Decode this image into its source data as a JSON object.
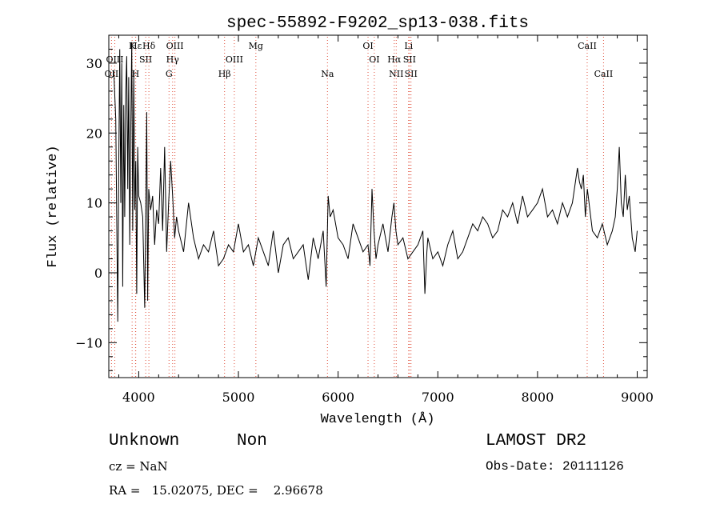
{
  "chart_data": {
    "type": "line",
    "title": "spec-55892-F9202_sp13-038.fits",
    "xlabel": "Wavelength (Å)",
    "ylabel": "Flux (relative)",
    "xlim": [
      3700,
      9100
    ],
    "ylim": [
      -15,
      34
    ],
    "xticks": [
      4000,
      5000,
      6000,
      7000,
      8000,
      9000
    ],
    "yticks": [
      -10,
      0,
      10,
      20,
      30
    ],
    "grid": false,
    "legend": "none",
    "line_color": "#000000",
    "marker_color": "#e0503c",
    "x": [
      3750,
      3770,
      3790,
      3800,
      3810,
      3820,
      3830,
      3840,
      3850,
      3860,
      3870,
      3880,
      3890,
      3900,
      3910,
      3920,
      3930,
      3940,
      3950,
      3960,
      3970,
      3980,
      3990,
      4000,
      4020,
      4040,
      4060,
      4070,
      4080,
      4090,
      4100,
      4120,
      4140,
      4160,
      4180,
      4200,
      4220,
      4240,
      4260,
      4280,
      4300,
      4320,
      4340,
      4360,
      4380,
      4400,
      4450,
      4500,
      4550,
      4600,
      4650,
      4700,
      4750,
      4800,
      4850,
      4900,
      4950,
      5000,
      5050,
      5100,
      5150,
      5200,
      5250,
      5300,
      5350,
      5400,
      5450,
      5500,
      5550,
      5600,
      5650,
      5700,
      5750,
      5800,
      5850,
      5880,
      5900,
      5920,
      5950,
      6000,
      6050,
      6100,
      6150,
      6200,
      6250,
      6300,
      6320,
      6340,
      6360,
      6380,
      6400,
      6450,
      6500,
      6540,
      6560,
      6580,
      6600,
      6650,
      6700,
      6750,
      6800,
      6850,
      6870,
      6890,
      6900,
      6950,
      7000,
      7050,
      7100,
      7150,
      7200,
      7250,
      7300,
      7350,
      7400,
      7450,
      7500,
      7550,
      7600,
      7650,
      7700,
      7750,
      7800,
      7850,
      7900,
      7950,
      8000,
      8050,
      8100,
      8150,
      8200,
      8250,
      8300,
      8350,
      8400,
      8420,
      8440,
      8460,
      8480,
      8500,
      8550,
      8600,
      8650,
      8700,
      8750,
      8780,
      8800,
      8820,
      8840,
      8860,
      8880,
      8900,
      8920,
      8950,
      8980,
      9000
    ],
    "values": [
      29,
      22,
      -7,
      16,
      32,
      10,
      30,
      -2,
      24,
      8,
      26,
      31,
      12,
      28,
      4,
      20,
      33,
      6,
      29,
      9,
      16,
      -3,
      18,
      11,
      10,
      8,
      -5,
      8,
      23,
      -4,
      12,
      9,
      11,
      4,
      9,
      7,
      15,
      6,
      18,
      3,
      10,
      16,
      11,
      5,
      8,
      6,
      3,
      10,
      5,
      2,
      4,
      3,
      6,
      1,
      2,
      4,
      3,
      7,
      3,
      4,
      1,
      5,
      3,
      1,
      6,
      0,
      4,
      5,
      2,
      3,
      4,
      -1,
      5,
      2,
      6,
      -2,
      11,
      8,
      9,
      5,
      4,
      2,
      7,
      5,
      3,
      4,
      1,
      12,
      6,
      2,
      4,
      7,
      3,
      8,
      10,
      6,
      4,
      5,
      2,
      3,
      4,
      6,
      -3,
      3,
      5,
      2,
      3,
      1,
      4,
      6,
      2,
      3,
      5,
      7,
      6,
      8,
      7,
      5,
      6,
      9,
      8,
      10,
      7,
      11,
      8,
      9,
      10,
      12,
      8,
      9,
      7,
      10,
      8,
      10,
      15,
      13,
      12,
      14,
      8,
      12,
      6,
      5,
      7,
      4,
      6,
      8,
      12,
      18,
      10,
      8,
      14,
      9,
      11,
      5,
      3,
      6
    ]
  },
  "lines": [
    {
      "label": "Hε",
      "x": 3970,
      "row": 0
    },
    {
      "label": "K",
      "x": 3934,
      "row": 0
    },
    {
      "label": "Hδ",
      "x": 4102,
      "row": 0
    },
    {
      "label": "OIII",
      "x": 4363,
      "row": 0
    },
    {
      "label": "Mg",
      "x": 5175,
      "row": 0
    },
    {
      "label": "OI",
      "x": 6300,
      "row": 0
    },
    {
      "label": "Li",
      "x": 6707,
      "row": 0
    },
    {
      "label": "CaII",
      "x": 8498,
      "row": 0
    },
    {
      "label": "OIII",
      "x": 3760,
      "row": 1
    },
    {
      "label": "SII",
      "x": 4070,
      "row": 1
    },
    {
      "label": "Hγ",
      "x": 4340,
      "row": 1
    },
    {
      "label": "OIII",
      "x": 4959,
      "row": 1
    },
    {
      "label": "OI",
      "x": 6363,
      "row": 1
    },
    {
      "label": "Hα",
      "x": 6563,
      "row": 1
    },
    {
      "label": "SII",
      "x": 6716,
      "row": 1
    },
    {
      "label": "OII",
      "x": 3727,
      "row": 2
    },
    {
      "label": "H",
      "x": 3968,
      "row": 2
    },
    {
      "label": "G",
      "x": 4304,
      "row": 2
    },
    {
      "label": "Hβ",
      "x": 4861,
      "row": 2
    },
    {
      "label": "Na",
      "x": 5893,
      "row": 2
    },
    {
      "label": "NII",
      "x": 6583,
      "row": 2
    },
    {
      "label": "SII",
      "x": 6731,
      "row": 2
    },
    {
      "label": "CaII",
      "x": 8662,
      "row": 2
    }
  ],
  "info": {
    "class_label": "Unknown",
    "subclass_label": "Non",
    "cz": "cz = NaN",
    "coords": "RA =   15.02075, DEC =    2.96678",
    "survey": "LAMOST DR2",
    "obs_date": "Obs-Date: 20111126"
  }
}
